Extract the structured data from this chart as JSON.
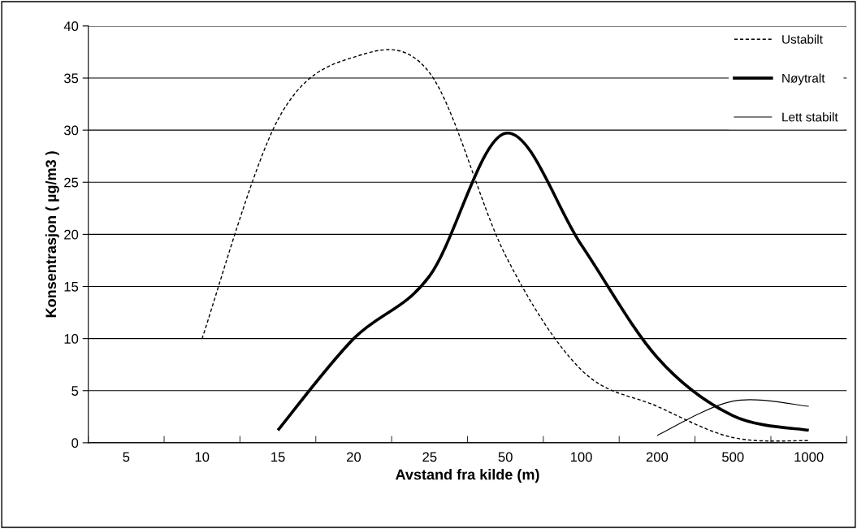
{
  "chart_data": {
    "type": "line",
    "xlabel": "Avstand fra kilde (m)",
    "ylabel": "Konsentrasjon ( µg/m3 )",
    "categories": [
      "5",
      "10",
      "15",
      "20",
      "25",
      "50",
      "100",
      "200",
      "500",
      "1000"
    ],
    "series": [
      {
        "name": "Ustabilt",
        "color": "#000000",
        "line_style": "dashed",
        "values": [
          null,
          10,
          31,
          37,
          35.5,
          18,
          7,
          3.5,
          0.5,
          0.2
        ]
      },
      {
        "name": "Nøytralt",
        "color": "#000000",
        "line_style": "solid",
        "values": [
          null,
          null,
          1.2,
          10,
          16,
          29.7,
          19,
          8.2,
          2.6,
          1.2
        ]
      },
      {
        "name": "Lett stabilt",
        "color": "#000000",
        "line_style": "solid",
        "values": [
          null,
          null,
          null,
          null,
          null,
          null,
          null,
          0.7,
          4,
          3.5
        ]
      }
    ],
    "ylim": [
      0,
      40
    ],
    "yticks": [
      0,
      5,
      10,
      15,
      20,
      25,
      30,
      35,
      40
    ],
    "grid": "y",
    "legend": "top right",
    "marker": "none"
  }
}
